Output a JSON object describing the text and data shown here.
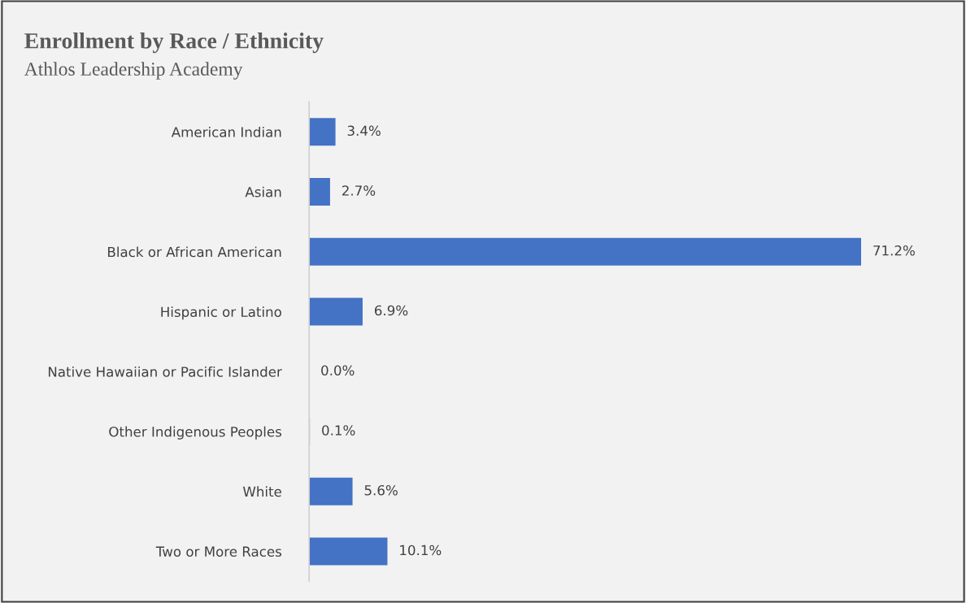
{
  "chart_data": {
    "type": "bar",
    "orientation": "horizontal",
    "title": "Enrollment by Race / Ethnicity",
    "subtitle": "Athlos Leadership Academy",
    "categories": [
      "American Indian",
      "Asian",
      "Black or African American",
      "Hispanic or Latino",
      "Native Hawaiian or Pacific Islander",
      "Other Indigenous Peoples",
      "White",
      "Two or More Races"
    ],
    "values": [
      3.4,
      2.7,
      71.2,
      6.9,
      0.0,
      0.1,
      5.6,
      10.1
    ],
    "value_labels": [
      "3.4%",
      "2.7%",
      "71.2%",
      "6.9%",
      "0.0%",
      "0.1%",
      "5.6%",
      "10.1%"
    ],
    "color": "#4472c4",
    "grid": false,
    "legend": false,
    "tick_labels": "y"
  }
}
